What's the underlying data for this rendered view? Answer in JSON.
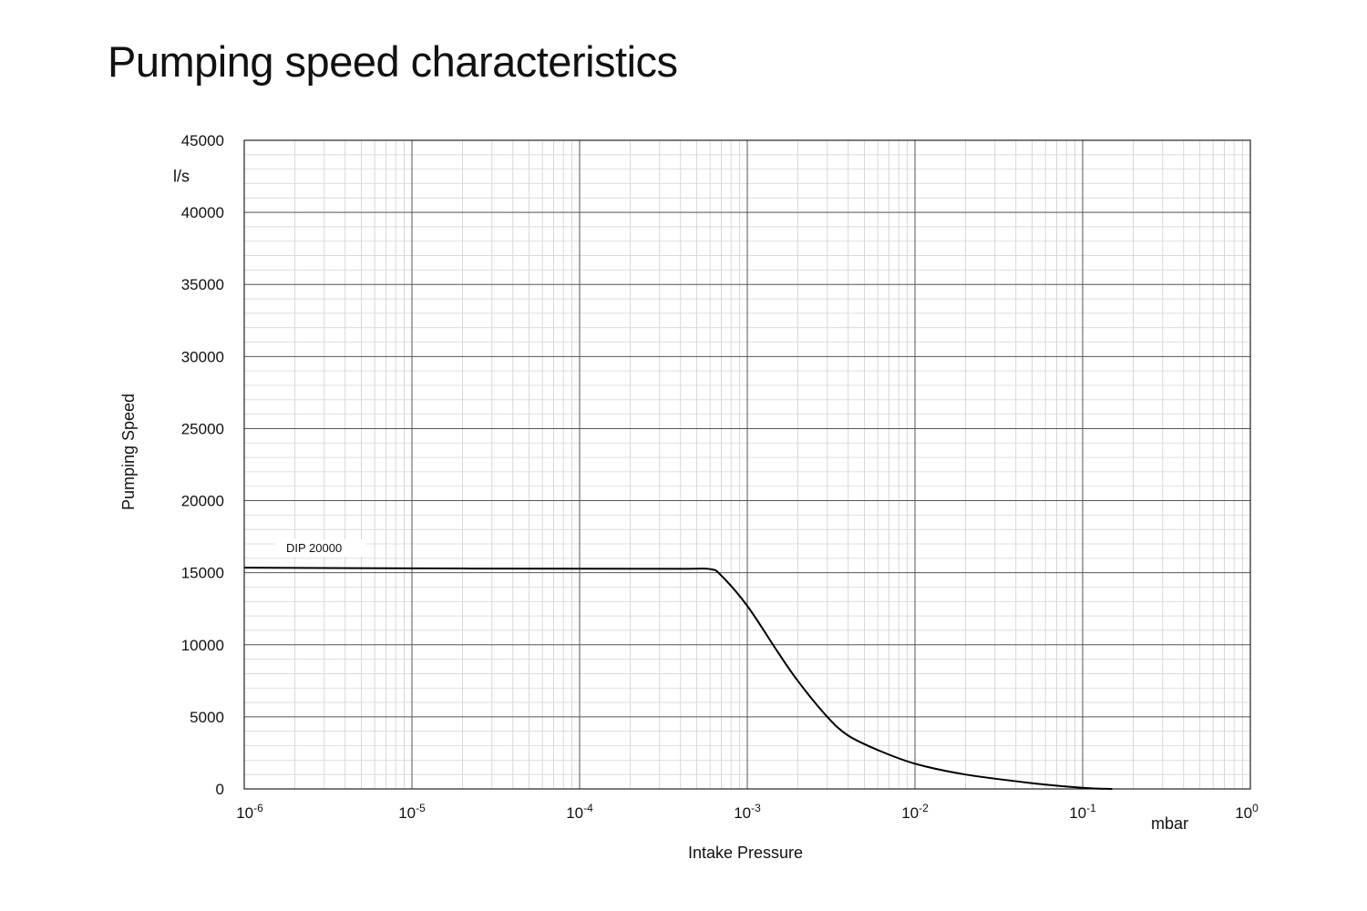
{
  "title": "Pumping speed characteristics",
  "chart_data": {
    "type": "line",
    "title": "Pumping speed characteristics",
    "xlabel": "Intake Pressure",
    "x_unit": "mbar",
    "ylabel": "Pumping Speed",
    "y_unit": "l/s",
    "x_scale": "log",
    "xlim": [
      1e-06,
      1
    ],
    "ylim": [
      0,
      45000
    ],
    "grid": true,
    "x_ticks": [
      {
        "value": 1e-06,
        "base": "10",
        "exp": "-6"
      },
      {
        "value": 1e-05,
        "base": "10",
        "exp": "-5"
      },
      {
        "value": 0.0001,
        "base": "10",
        "exp": "-4"
      },
      {
        "value": 0.001,
        "base": "10",
        "exp": "-3"
      },
      {
        "value": 0.01,
        "base": "10",
        "exp": "-2"
      },
      {
        "value": 0.1,
        "base": "10",
        "exp": "-1"
      },
      {
        "value": 1,
        "base": "10",
        "exp": "0"
      }
    ],
    "y_ticks": [
      {
        "value": 0,
        "label": "0"
      },
      {
        "value": 5000,
        "label": "5000"
      },
      {
        "value": 10000,
        "label": "10000"
      },
      {
        "value": 15000,
        "label": "15000"
      },
      {
        "value": 20000,
        "label": "20000"
      },
      {
        "value": 25000,
        "label": "25000"
      },
      {
        "value": 30000,
        "label": "30000"
      },
      {
        "value": 35000,
        "label": "35000"
      },
      {
        "value": 40000,
        "label": "40000"
      },
      {
        "value": 45000,
        "label": "45000"
      }
    ],
    "series": [
      {
        "name": "DIP 20000",
        "color": "#000000",
        "points": [
          {
            "x": 1e-06,
            "y": 15350
          },
          {
            "x": 1e-05,
            "y": 15300
          },
          {
            "x": 0.0001,
            "y": 15280
          },
          {
            "x": 0.0004,
            "y": 15270
          },
          {
            "x": 0.0006,
            "y": 15250
          },
          {
            "x": 0.0007,
            "y": 14800
          },
          {
            "x": 0.001,
            "y": 12700
          },
          {
            "x": 0.0015,
            "y": 9600
          },
          {
            "x": 0.002,
            "y": 7500
          },
          {
            "x": 0.003,
            "y": 5000
          },
          {
            "x": 0.004,
            "y": 3700
          },
          {
            "x": 0.006,
            "y": 2700
          },
          {
            "x": 0.01,
            "y": 1750
          },
          {
            "x": 0.02,
            "y": 1000
          },
          {
            "x": 0.05,
            "y": 400
          },
          {
            "x": 0.1,
            "y": 80
          },
          {
            "x": 0.15,
            "y": 0
          }
        ]
      }
    ]
  }
}
